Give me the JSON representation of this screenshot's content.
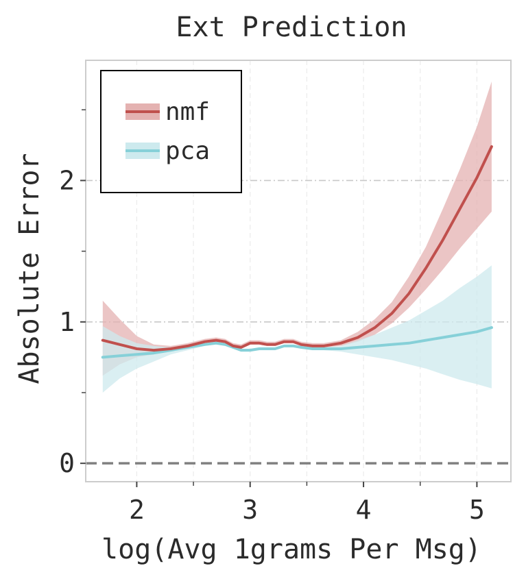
{
  "chart_data": {
    "type": "line",
    "title": "Ext Prediction",
    "xlabel": "log(Avg 1grams Per Msg)",
    "ylabel": "Absolute Error",
    "xlim": [
      1.55,
      5.3
    ],
    "ylim": [
      -0.13,
      2.85
    ],
    "x_ticks": [
      2,
      3,
      4,
      5
    ],
    "x_tick_labels": [
      "2",
      "3",
      "4",
      "5"
    ],
    "x_minor_ticks": [
      2.5,
      3.5,
      4.5
    ],
    "y_ticks": [
      0,
      1,
      2
    ],
    "y_tick_labels": [
      "0",
      "1",
      "2"
    ],
    "y_minor_ticks": [
      0.5,
      1.5,
      2.5
    ],
    "grid": true,
    "reference_line_y": 0,
    "legend": {
      "position": "top-left",
      "entries": [
        "nmf",
        "pca"
      ]
    },
    "series": [
      {
        "name": "nmf",
        "color": "#c0504d",
        "band_color": "#e4b2b1",
        "x": [
          1.7,
          1.85,
          2.0,
          2.15,
          2.3,
          2.45,
          2.6,
          2.7,
          2.78,
          2.85,
          2.92,
          3.0,
          3.08,
          3.15,
          3.22,
          3.3,
          3.38,
          3.45,
          3.55,
          3.65,
          3.8,
          3.95,
          4.1,
          4.25,
          4.4,
          4.55,
          4.7,
          4.85,
          5.0,
          5.13
        ],
        "y": [
          0.87,
          0.84,
          0.81,
          0.8,
          0.81,
          0.83,
          0.86,
          0.87,
          0.86,
          0.83,
          0.82,
          0.85,
          0.85,
          0.84,
          0.84,
          0.86,
          0.86,
          0.84,
          0.83,
          0.83,
          0.85,
          0.89,
          0.96,
          1.06,
          1.2,
          1.38,
          1.58,
          1.8,
          2.02,
          2.24
        ],
        "lower": [
          0.62,
          0.7,
          0.75,
          0.77,
          0.79,
          0.82,
          0.85,
          0.86,
          0.85,
          0.82,
          0.81,
          0.84,
          0.84,
          0.83,
          0.83,
          0.85,
          0.85,
          0.83,
          0.82,
          0.82,
          0.83,
          0.86,
          0.91,
          0.99,
          1.1,
          1.23,
          1.37,
          1.52,
          1.66,
          1.78
        ],
        "upper": [
          1.15,
          1.02,
          0.9,
          0.84,
          0.83,
          0.85,
          0.88,
          0.89,
          0.88,
          0.85,
          0.84,
          0.87,
          0.87,
          0.86,
          0.86,
          0.88,
          0.88,
          0.86,
          0.85,
          0.85,
          0.87,
          0.93,
          1.02,
          1.14,
          1.32,
          1.53,
          1.8,
          2.08,
          2.38,
          2.7
        ]
      },
      {
        "name": "pca",
        "color": "#86d0d8",
        "band_color": "#cdeaee",
        "x": [
          1.7,
          1.85,
          2.0,
          2.15,
          2.3,
          2.45,
          2.6,
          2.7,
          2.78,
          2.85,
          2.92,
          3.0,
          3.08,
          3.15,
          3.22,
          3.3,
          3.38,
          3.45,
          3.55,
          3.65,
          3.8,
          3.95,
          4.1,
          4.25,
          4.4,
          4.55,
          4.7,
          4.85,
          5.0,
          5.13
        ],
        "y": [
          0.75,
          0.76,
          0.77,
          0.78,
          0.8,
          0.82,
          0.84,
          0.85,
          0.84,
          0.82,
          0.8,
          0.8,
          0.81,
          0.81,
          0.81,
          0.83,
          0.83,
          0.82,
          0.81,
          0.81,
          0.81,
          0.82,
          0.83,
          0.84,
          0.85,
          0.87,
          0.89,
          0.91,
          0.93,
          0.96
        ],
        "lower": [
          0.5,
          0.6,
          0.67,
          0.72,
          0.77,
          0.8,
          0.83,
          0.84,
          0.83,
          0.81,
          0.79,
          0.79,
          0.8,
          0.8,
          0.8,
          0.82,
          0.82,
          0.81,
          0.8,
          0.8,
          0.79,
          0.77,
          0.75,
          0.73,
          0.7,
          0.67,
          0.63,
          0.59,
          0.56,
          0.53
        ],
        "upper": [
          0.97,
          0.9,
          0.85,
          0.83,
          0.82,
          0.83,
          0.85,
          0.86,
          0.85,
          0.83,
          0.81,
          0.81,
          0.82,
          0.82,
          0.82,
          0.84,
          0.84,
          0.83,
          0.82,
          0.82,
          0.83,
          0.87,
          0.91,
          0.96,
          1.01,
          1.08,
          1.15,
          1.24,
          1.32,
          1.4
        ]
      }
    ]
  }
}
